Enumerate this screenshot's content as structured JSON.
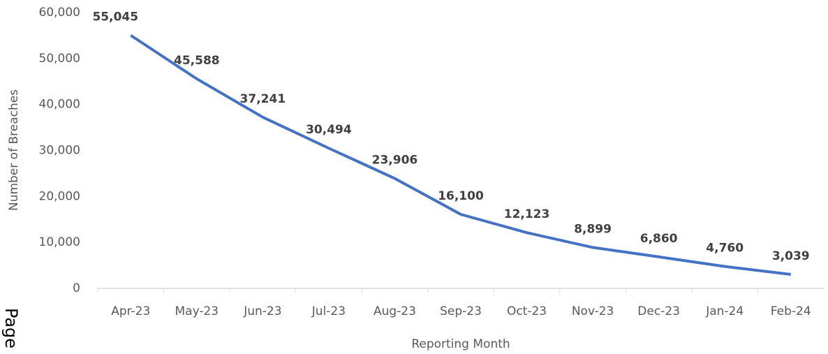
{
  "chart_data": {
    "type": "line",
    "x_label": "Reporting Month",
    "y_label": "Number of Breaches",
    "categories": [
      "Apr-23",
      "May-23",
      "Jun-23",
      "Jul-23",
      "Aug-23",
      "Sep-23",
      "Oct-23",
      "Nov-23",
      "Dec-23",
      "Jan-24",
      "Feb-24"
    ],
    "series": [
      {
        "name": "Number of Breaches",
        "color": "#4472c4",
        "values": [
          55045,
          45588,
          37241,
          30494,
          23906,
          16100,
          12123,
          8899,
          6860,
          4760,
          3039
        ],
        "value_labels": [
          "55,045",
          "45,588",
          "37,241",
          "30,494",
          "23,906",
          "16,100",
          "12,123",
          "8,899",
          "6,860",
          "4,760",
          "3,039"
        ]
      }
    ],
    "ylim": [
      0,
      60000
    ],
    "yticks": [
      0,
      {
        "value": 10000,
        "label": "10,000"
      },
      {
        "value": 20000,
        "label": "20,000"
      },
      {
        "value": 30000,
        "label": "30,000"
      },
      {
        "value": 40000,
        "label": "40,000"
      },
      {
        "value": 50000,
        "label": "50,000"
      },
      {
        "value": 60000,
        "label": "60,000"
      }
    ],
    "grid": false,
    "annotations": [
      "Page"
    ]
  }
}
